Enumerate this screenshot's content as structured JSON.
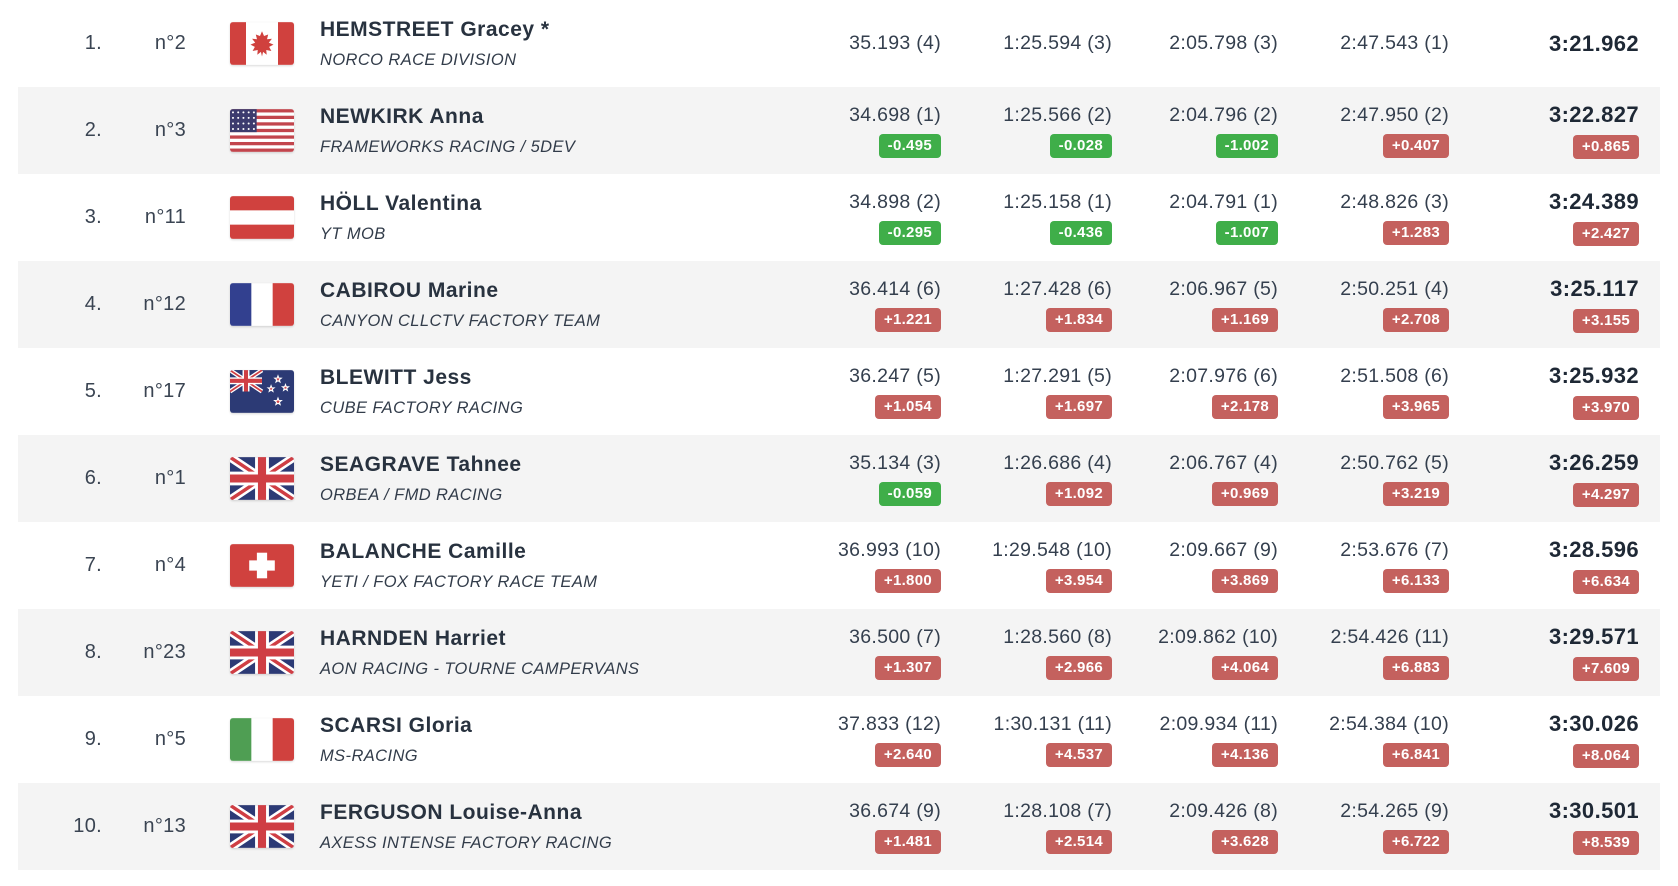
{
  "colors": {
    "gap_faster_badge": "#3fae49",
    "gap_slower_badge": "#c4615e",
    "row_stripe": "#f4f4f4",
    "time_text": "#343f4e",
    "final_time_text": "#1e2835"
  },
  "table": {
    "rows": [
      {
        "position": "1.",
        "number": "n°2",
        "flag": {
          "code": "ca",
          "name": "canada-flag"
        },
        "name": "HEMSTREET Gracey *",
        "team": "NORCO RACE DIVISION",
        "splits": [
          {
            "time": "35.193 (4)",
            "gap": null
          },
          {
            "time": "1:25.594 (3)",
            "gap": null
          },
          {
            "time": "2:05.798 (3)",
            "gap": null
          },
          {
            "time": "2:47.543 (1)",
            "gap": null
          }
        ],
        "final": {
          "time": "3:21.962",
          "gap": null
        }
      },
      {
        "position": "2.",
        "number": "n°3",
        "flag": {
          "code": "us",
          "name": "usa-flag"
        },
        "name": "NEWKIRK Anna",
        "team": "FRAMEWORKS RACING / 5DEV",
        "splits": [
          {
            "time": "34.698 (1)",
            "gap": {
              "text": "-0.495",
              "type": "faster"
            }
          },
          {
            "time": "1:25.566 (2)",
            "gap": {
              "text": "-0.028",
              "type": "faster"
            }
          },
          {
            "time": "2:04.796 (2)",
            "gap": {
              "text": "-1.002",
              "type": "faster"
            }
          },
          {
            "time": "2:47.950 (2)",
            "gap": {
              "text": "+0.407",
              "type": "slower"
            }
          }
        ],
        "final": {
          "time": "3:22.827",
          "gap": {
            "text": "+0.865",
            "type": "slower"
          }
        }
      },
      {
        "position": "3.",
        "number": "n°11",
        "flag": {
          "code": "at",
          "name": "austria-flag"
        },
        "name": "HÖLL Valentina",
        "team": "YT MOB",
        "splits": [
          {
            "time": "34.898 (2)",
            "gap": {
              "text": "-0.295",
              "type": "faster"
            }
          },
          {
            "time": "1:25.158 (1)",
            "gap": {
              "text": "-0.436",
              "type": "faster"
            }
          },
          {
            "time": "2:04.791 (1)",
            "gap": {
              "text": "-1.007",
              "type": "faster"
            }
          },
          {
            "time": "2:48.826 (3)",
            "gap": {
              "text": "+1.283",
              "type": "slower"
            }
          }
        ],
        "final": {
          "time": "3:24.389",
          "gap": {
            "text": "+2.427",
            "type": "slower"
          }
        }
      },
      {
        "position": "4.",
        "number": "n°12",
        "flag": {
          "code": "fr",
          "name": "france-flag"
        },
        "name": "CABIROU Marine",
        "team": "CANYON CLLCTV FACTORY TEAM",
        "splits": [
          {
            "time": "36.414 (6)",
            "gap": {
              "text": "+1.221",
              "type": "slower"
            }
          },
          {
            "time": "1:27.428 (6)",
            "gap": {
              "text": "+1.834",
              "type": "slower"
            }
          },
          {
            "time": "2:06.967 (5)",
            "gap": {
              "text": "+1.169",
              "type": "slower"
            }
          },
          {
            "time": "2:50.251 (4)",
            "gap": {
              "text": "+2.708",
              "type": "slower"
            }
          }
        ],
        "final": {
          "time": "3:25.117",
          "gap": {
            "text": "+3.155",
            "type": "slower"
          }
        }
      },
      {
        "position": "5.",
        "number": "n°17",
        "flag": {
          "code": "nz",
          "name": "new-zealand-flag"
        },
        "name": "BLEWITT Jess",
        "team": "CUBE FACTORY RACING",
        "splits": [
          {
            "time": "36.247 (5)",
            "gap": {
              "text": "+1.054",
              "type": "slower"
            }
          },
          {
            "time": "1:27.291 (5)",
            "gap": {
              "text": "+1.697",
              "type": "slower"
            }
          },
          {
            "time": "2:07.976 (6)",
            "gap": {
              "text": "+2.178",
              "type": "slower"
            }
          },
          {
            "time": "2:51.508 (6)",
            "gap": {
              "text": "+3.965",
              "type": "slower"
            }
          }
        ],
        "final": {
          "time": "3:25.932",
          "gap": {
            "text": "+3.970",
            "type": "slower"
          }
        }
      },
      {
        "position": "6.",
        "number": "n°1",
        "flag": {
          "code": "gb",
          "name": "great-britain-flag"
        },
        "name": "SEAGRAVE Tahnee",
        "team": "ORBEA / FMD RACING",
        "splits": [
          {
            "time": "35.134 (3)",
            "gap": {
              "text": "-0.059",
              "type": "faster"
            }
          },
          {
            "time": "1:26.686 (4)",
            "gap": {
              "text": "+1.092",
              "type": "slower"
            }
          },
          {
            "time": "2:06.767 (4)",
            "gap": {
              "text": "+0.969",
              "type": "slower"
            }
          },
          {
            "time": "2:50.762 (5)",
            "gap": {
              "text": "+3.219",
              "type": "slower"
            }
          }
        ],
        "final": {
          "time": "3:26.259",
          "gap": {
            "text": "+4.297",
            "type": "slower"
          }
        }
      },
      {
        "position": "7.",
        "number": "n°4",
        "flag": {
          "code": "ch",
          "name": "switzerland-flag"
        },
        "name": "BALANCHE Camille",
        "team": "YETI / FOX FACTORY RACE TEAM",
        "splits": [
          {
            "time": "36.993 (10)",
            "gap": {
              "text": "+1.800",
              "type": "slower"
            }
          },
          {
            "time": "1:29.548 (10)",
            "gap": {
              "text": "+3.954",
              "type": "slower"
            }
          },
          {
            "time": "2:09.667 (9)",
            "gap": {
              "text": "+3.869",
              "type": "slower"
            }
          },
          {
            "time": "2:53.676 (7)",
            "gap": {
              "text": "+6.133",
              "type": "slower"
            }
          }
        ],
        "final": {
          "time": "3:28.596",
          "gap": {
            "text": "+6.634",
            "type": "slower"
          }
        }
      },
      {
        "position": "8.",
        "number": "n°23",
        "flag": {
          "code": "gb",
          "name": "great-britain-flag"
        },
        "name": "HARNDEN Harriet",
        "team": "AON RACING - TOURNE CAMPERVANS",
        "splits": [
          {
            "time": "36.500 (7)",
            "gap": {
              "text": "+1.307",
              "type": "slower"
            }
          },
          {
            "time": "1:28.560 (8)",
            "gap": {
              "text": "+2.966",
              "type": "slower"
            }
          },
          {
            "time": "2:09.862 (10)",
            "gap": {
              "text": "+4.064",
              "type": "slower"
            }
          },
          {
            "time": "2:54.426 (11)",
            "gap": {
              "text": "+6.883",
              "type": "slower"
            }
          }
        ],
        "final": {
          "time": "3:29.571",
          "gap": {
            "text": "+7.609",
            "type": "slower"
          }
        }
      },
      {
        "position": "9.",
        "number": "n°5",
        "flag": {
          "code": "it",
          "name": "italy-flag"
        },
        "name": "SCARSI Gloria",
        "team": "MS-RACING",
        "splits": [
          {
            "time": "37.833 (12)",
            "gap": {
              "text": "+2.640",
              "type": "slower"
            }
          },
          {
            "time": "1:30.131 (11)",
            "gap": {
              "text": "+4.537",
              "type": "slower"
            }
          },
          {
            "time": "2:09.934 (11)",
            "gap": {
              "text": "+4.136",
              "type": "slower"
            }
          },
          {
            "time": "2:54.384 (10)",
            "gap": {
              "text": "+6.841",
              "type": "slower"
            }
          }
        ],
        "final": {
          "time": "3:30.026",
          "gap": {
            "text": "+8.064",
            "type": "slower"
          }
        }
      },
      {
        "position": "10.",
        "number": "n°13",
        "flag": {
          "code": "gb",
          "name": "great-britain-flag"
        },
        "name": "FERGUSON Louise-Anna",
        "team": "AXESS INTENSE FACTORY RACING",
        "splits": [
          {
            "time": "36.674 (9)",
            "gap": {
              "text": "+1.481",
              "type": "slower"
            }
          },
          {
            "time": "1:28.108 (7)",
            "gap": {
              "text": "+2.514",
              "type": "slower"
            }
          },
          {
            "time": "2:09.426 (8)",
            "gap": {
              "text": "+3.628",
              "type": "slower"
            }
          },
          {
            "time": "2:54.265 (9)",
            "gap": {
              "text": "+6.722",
              "type": "slower"
            }
          }
        ],
        "final": {
          "time": "3:30.501",
          "gap": {
            "text": "+8.539",
            "type": "slower"
          }
        }
      }
    ]
  }
}
